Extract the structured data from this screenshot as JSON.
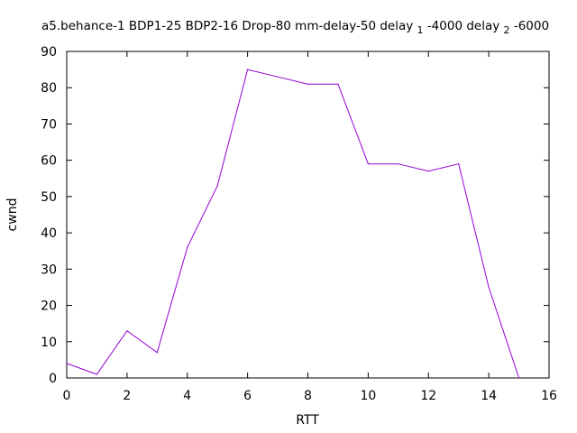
{
  "chart_data": {
    "type": "line",
    "title": "a5.behance-1 BDP1-25 BDP2-16 Drop-80 mm-delay-50 delay",
    "title_parts": {
      "sub1": "1",
      "mid": "-4000 delay",
      "sub2": "2",
      "end": "-6000"
    },
    "xlabel": "RTT",
    "ylabel": "cwnd",
    "xlim": [
      0,
      16
    ],
    "ylim": [
      0,
      90
    ],
    "xticks": [
      "0",
      "2",
      "4",
      "6",
      "8",
      "10",
      "12",
      "14",
      "16"
    ],
    "yticks": [
      "0",
      "10",
      "20",
      "30",
      "40",
      "50",
      "60",
      "70",
      "80",
      "90"
    ],
    "grid": false,
    "series": [
      {
        "color": "#9400d3",
        "x": [
          0,
          1,
          2,
          3,
          4,
          5,
          6,
          7,
          8,
          9,
          10,
          11,
          12,
          13,
          14,
          15
        ],
        "y": [
          4,
          1,
          13,
          7,
          36,
          53,
          85,
          83,
          81,
          81,
          59,
          59,
          57,
          59,
          25,
          0
        ]
      }
    ]
  }
}
